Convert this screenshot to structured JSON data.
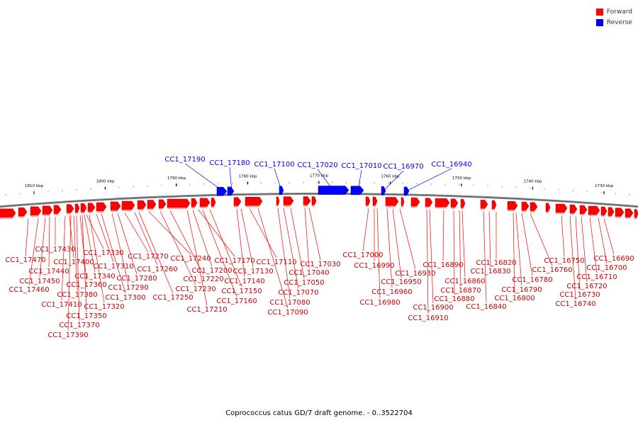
{
  "legend": {
    "forward_label": "Forward",
    "reverse_label": "Reverse",
    "forward_color": "#ff0000",
    "reverse_color": "#0000ff"
  },
  "caption": "Coprococcus catus GD/7 draft genome. - 0..3522704",
  "scale": {
    "ticks": [
      {
        "kbp": 1810,
        "label": "1810 kbp"
      },
      {
        "kbp": 1800,
        "label": "1800 kbp"
      },
      {
        "kbp": 1790,
        "label": "1790 kbp"
      },
      {
        "kbp": 1780,
        "label": "1780 kbp"
      },
      {
        "kbp": 1770,
        "label": "1770 kbp"
      },
      {
        "kbp": 1760,
        "label": "1760 kbp"
      },
      {
        "kbp": 1750,
        "label": "1750 kbp"
      },
      {
        "kbp": 1740,
        "label": "1740 kbp"
      },
      {
        "kbp": 1730,
        "label": "1730 kbp"
      }
    ]
  },
  "reverse_genes": [
    "CC1_17190",
    "CC1_17180",
    "CC1_17100",
    "CC1_17020",
    "CC1_17010",
    "CC1_16970",
    "CC1_16940"
  ],
  "forward_genes": [
    "CC1_17470",
    "CC1_17460",
    "CC1_17450",
    "CC1_17440",
    "CC1_17430",
    "CC1_17410",
    "CC1_17400",
    "CC1_17390",
    "CC1_17380",
    "CC1_17370",
    "CC1_17360",
    "CC1_17350",
    "CC1_17340",
    "CC1_17330",
    "CC1_17320",
    "CC1_17310",
    "CC1_17300",
    "CC1_17290",
    "CC1_17280",
    "CC1_17270",
    "CC1_17260",
    "CC1_17250",
    "CC1_17240",
    "CC1_17230",
    "CC1_17220",
    "CC1_17210",
    "CC1_17200",
    "CC1_17170",
    "CC1_17160",
    "CC1_17150",
    "CC1_17140",
    "CC1_17130",
    "CC1_17110",
    "CC1_17090",
    "CC1_17080",
    "CC1_17070",
    "CC1_17050",
    "CC1_17040",
    "CC1_17030",
    "CC1_17000",
    "CC1_16990",
    "CC1_16980",
    "CC1_16960",
    "CC1_16950",
    "CC1_16930",
    "CC1_16910",
    "CC1_16900",
    "CC1_16890",
    "CC1_16880",
    "CC1_16870",
    "CC1_16860",
    "CC1_16840",
    "CC1_16830",
    "CC1_16820",
    "CC1_16800",
    "CC1_16790",
    "CC1_16780",
    "CC1_16760",
    "CC1_16750",
    "CC1_16740",
    "CC1_16730",
    "CC1_16720",
    "CC1_16710",
    "CC1_16700",
    "CC1_16690"
  ]
}
